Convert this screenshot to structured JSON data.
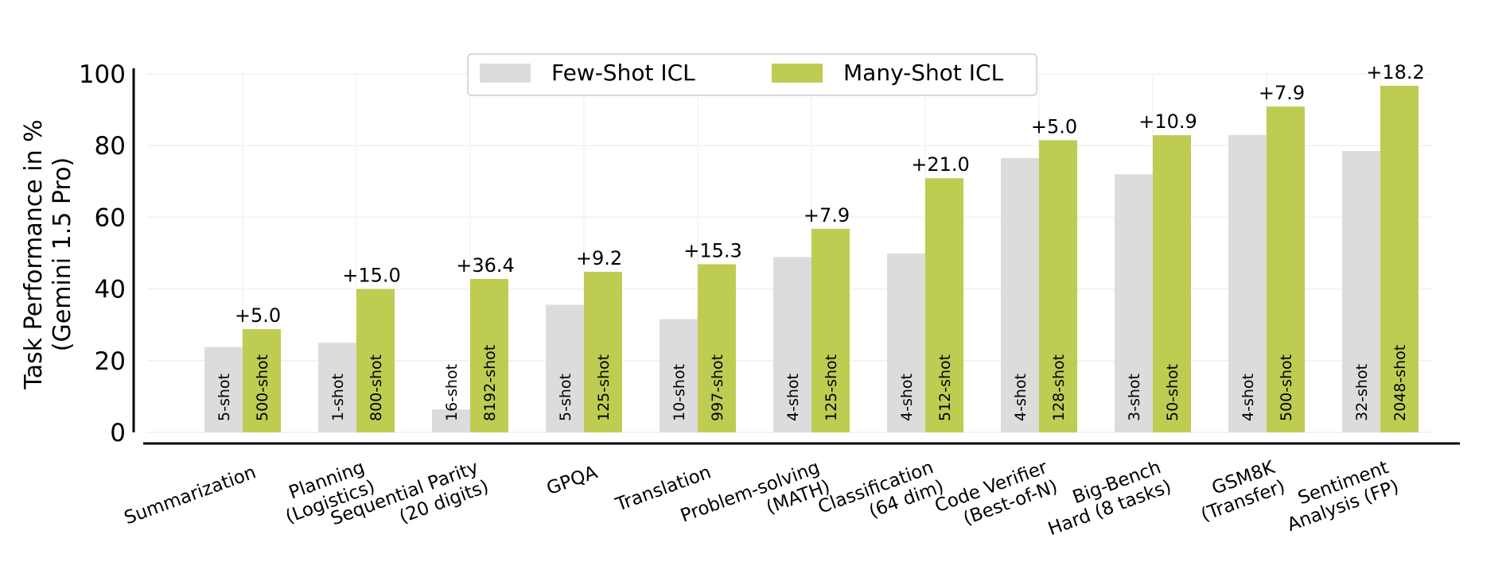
{
  "chart_data": {
    "type": "bar",
    "title": "",
    "xlabel": "",
    "ylabel": [
      "Task Performance in %",
      "(Gemini 1.5 Pro)"
    ],
    "ylim": [
      0,
      100
    ],
    "yticks": [
      0,
      20,
      40,
      60,
      80,
      100
    ],
    "grid": true,
    "legend_position": "top-center",
    "colors": {
      "few": "#dcdcdc",
      "many": "#bfcc52"
    },
    "categories": [
      [
        "Summarization"
      ],
      [
        "Planning",
        "(Logistics)"
      ],
      [
        "Sequential Parity",
        "(20 digits)"
      ],
      [
        "GPQA"
      ],
      [
        "Translation"
      ],
      [
        "Problem-solving",
        "(MATH)"
      ],
      [
        "Classification",
        "(64 dim)"
      ],
      [
        "Code Verifier",
        "(Best-of-N)"
      ],
      [
        "Big-Bench",
        "Hard (8 tasks)"
      ],
      [
        "GSM8K",
        "(Transfer)"
      ],
      [
        "Sentiment",
        "Analysis (FP)"
      ]
    ],
    "series": [
      {
        "name": "Few-Shot ICL",
        "values": [
          23.8,
          25.0,
          6.4,
          35.6,
          31.6,
          48.9,
          49.9,
          76.5,
          72.0,
          83.0,
          78.5
        ],
        "bar_labels": [
          "5-shot",
          "1-shot",
          "16-shot",
          "5-shot",
          "10-shot",
          "4-shot",
          "4-shot",
          "4-shot",
          "3-shot",
          "4-shot",
          "32-shot"
        ]
      },
      {
        "name": "Many-Shot ICL",
        "values": [
          28.8,
          40.0,
          42.8,
          44.8,
          46.9,
          56.8,
          70.9,
          81.5,
          82.9,
          90.9,
          96.7
        ],
        "bar_labels": [
          "500-shot",
          "800-shot",
          "8192-shot",
          "125-shot",
          "997-shot",
          "125-shot",
          "512-shot",
          "128-shot",
          "50-shot",
          "500-shot",
          "2048-shot"
        ]
      }
    ],
    "annotations": [
      "+5.0",
      "+15.0",
      "+36.4",
      "+9.2",
      "+15.3",
      "+7.9",
      "+21.0",
      "+5.0",
      "+10.9",
      "+7.9",
      "+18.2"
    ]
  }
}
